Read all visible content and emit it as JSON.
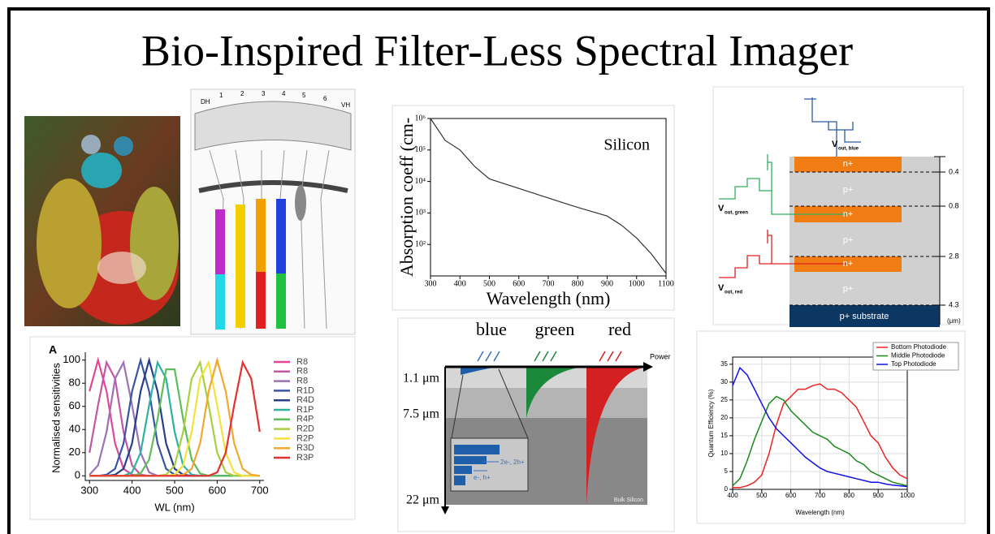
{
  "title": "Bio-Inspired Filter-Less Spectral Imager",
  "eye_drawing": {
    "labels": [
      "DH",
      "1",
      "2",
      "3",
      "4",
      "5",
      "6",
      "VH"
    ]
  },
  "chart_data": [
    {
      "type": "line",
      "log_y": true,
      "annotation": "Silicon",
      "xlabel": "Wavelength (nm)",
      "ylabel": "Absorption coeff (cm-",
      "x": [
        300,
        350,
        400,
        450,
        500,
        600,
        700,
        800,
        900,
        950,
        1000,
        1050,
        1100
      ],
      "values": [
        1000000,
        200000,
        100000,
        30000,
        12000,
        6000,
        3000,
        1500,
        800,
        400,
        160,
        50,
        12
      ],
      "color": "#333333",
      "xlim": [
        300,
        1100
      ],
      "ylim": [
        10,
        1000000
      ],
      "xticks": [
        300,
        400,
        500,
        600,
        700,
        800,
        900,
        1000,
        1100
      ],
      "yticks": [
        {
          "value": 100,
          "label": "10²"
        },
        {
          "value": 1000,
          "label": "10³"
        },
        {
          "value": 10000,
          "label": "10⁴"
        },
        {
          "value": 100000,
          "label": "10⁵"
        },
        {
          "value": 1000000,
          "label": "10⁶"
        }
      ]
    },
    {
      "type": "line",
      "panel_label": "A",
      "xlabel": "WL (nm)",
      "ylabel": "Normalised sensitivities",
      "x": [
        300,
        320,
        340,
        360,
        380,
        400,
        420,
        440,
        460,
        480,
        500,
        520,
        540,
        560,
        580,
        600,
        620,
        640,
        660,
        680,
        700
      ],
      "series": [
        {
          "name": "R8",
          "color": "#e64597",
          "values": [
            73,
            100,
            73,
            28,
            6,
            1,
            0,
            0,
            0,
            0,
            0,
            0,
            0,
            0,
            0,
            0,
            0,
            0,
            0,
            0,
            0
          ]
        },
        {
          "name": "R8",
          "color": "#c457a5",
          "values": [
            20,
            61,
            98,
            84,
            38,
            9,
            1,
            0,
            0,
            0,
            0,
            0,
            0,
            0,
            0,
            0,
            0,
            0,
            0,
            0,
            0
          ]
        },
        {
          "name": "R8",
          "color": "#9a72b5",
          "values": [
            1,
            9,
            38,
            84,
            98,
            61,
            20,
            3,
            0,
            0,
            0,
            0,
            0,
            0,
            0,
            0,
            0,
            0,
            0,
            0,
            0
          ]
        },
        {
          "name": "R1D",
          "color": "#3b55a5",
          "values": [
            0,
            0,
            1,
            6,
            28,
            73,
            100,
            73,
            28,
            6,
            1,
            0,
            0,
            0,
            0,
            0,
            0,
            0,
            0,
            0,
            0
          ]
        },
        {
          "name": "R4D",
          "color": "#283e8c",
          "values": [
            0,
            0,
            0,
            1,
            6,
            28,
            73,
            100,
            73,
            28,
            6,
            1,
            0,
            0,
            0,
            0,
            0,
            0,
            0,
            0,
            0
          ]
        },
        {
          "name": "R1P",
          "color": "#2cb3a0",
          "values": [
            0,
            0,
            0,
            0,
            0,
            3,
            20,
            61,
            98,
            84,
            38,
            9,
            1,
            0,
            0,
            0,
            0,
            0,
            0,
            0,
            0
          ]
        },
        {
          "name": "R4P",
          "color": "#5ebd5b",
          "values": [
            0,
            0,
            0,
            0,
            0,
            0,
            2,
            14,
            49,
            92,
            92,
            49,
            14,
            2,
            0,
            0,
            0,
            0,
            0,
            0,
            0
          ]
        },
        {
          "name": "R2D",
          "color": "#a9cf3f",
          "values": [
            0,
            0,
            0,
            0,
            0,
            0,
            0,
            0,
            0,
            1,
            9,
            38,
            84,
            98,
            61,
            20,
            3,
            0,
            0,
            0,
            0
          ]
        },
        {
          "name": "R2P",
          "color": "#f3e23b",
          "values": [
            0,
            0,
            0,
            0,
            0,
            0,
            0,
            0,
            0,
            0,
            1,
            9,
            38,
            84,
            98,
            61,
            20,
            3,
            0,
            0,
            0
          ]
        },
        {
          "name": "R3D",
          "color": "#f2a72e",
          "values": [
            0,
            0,
            0,
            0,
            0,
            0,
            0,
            0,
            0,
            0,
            0,
            1,
            6,
            28,
            73,
            100,
            73,
            28,
            6,
            1,
            0
          ]
        },
        {
          "name": "R3P",
          "color": "#e3312f",
          "values": [
            0,
            0,
            0,
            0,
            0,
            0,
            0,
            0,
            0,
            0,
            0,
            0,
            0,
            0,
            0,
            3,
            20,
            61,
            98,
            84,
            38
          ]
        }
      ],
      "xlim": [
        290,
        710
      ],
      "ylim": [
        -4,
        104
      ],
      "xticks": [
        300,
        400,
        500,
        600,
        700
      ],
      "yticks": [
        0,
        20,
        40,
        60,
        80,
        100
      ],
      "legend": "right"
    },
    {
      "type": "line",
      "xlabel": "Wavelength (nm)",
      "ylabel": "Quantum Efficiency (%)",
      "x": [
        400,
        425,
        450,
        475,
        500,
        525,
        550,
        575,
        600,
        625,
        650,
        675,
        700,
        725,
        750,
        775,
        800,
        825,
        850,
        875,
        900,
        925,
        950,
        975,
        1000
      ],
      "series": [
        {
          "name": "Bottom Photodiode",
          "color": "#ee2222",
          "values": [
            0.5,
            0.5,
            1,
            2,
            4,
            10,
            18,
            24,
            26,
            28,
            28,
            29,
            29.5,
            28,
            28,
            27,
            25,
            23,
            19,
            15,
            13,
            9,
            6,
            4,
            3
          ]
        },
        {
          "name": "Middle Photodiode",
          "color": "#1a8a1a",
          "values": [
            1,
            3,
            8,
            14,
            19,
            24,
            26,
            25,
            22,
            20,
            18,
            16,
            15,
            14,
            12,
            11,
            10,
            8,
            7,
            5,
            4,
            3,
            2,
            1.5,
            1
          ]
        },
        {
          "name": "Top Photodiode",
          "color": "#1111ee",
          "values": [
            29,
            34,
            32,
            28,
            24,
            20,
            17,
            15,
            13,
            11,
            9,
            7.5,
            6,
            5,
            4.5,
            4,
            3.5,
            3,
            2.5,
            2,
            2,
            1.5,
            1.2,
            1,
            0.8
          ]
        }
      ],
      "xlim": [
        400,
        1000
      ],
      "ylim": [
        0,
        37
      ],
      "xticks": [
        400,
        500,
        600,
        700,
        800,
        900,
        1000
      ],
      "yticks": [
        0,
        5,
        10,
        15,
        20,
        25,
        30,
        35
      ],
      "grid": true,
      "legend": "upper-right"
    }
  ],
  "cmos_diagram": {
    "layers": [
      "n+",
      "p+",
      "n+",
      "p+",
      "n+",
      "p+",
      "p+ substrate"
    ],
    "depths": [
      "0.4",
      "0.8",
      "2.8",
      "4.3"
    ],
    "unit": "(μm)",
    "outputs": [
      {
        "symbol": "V",
        "subscript": "out, blue"
      },
      {
        "symbol": "V",
        "subscript": "out, green"
      },
      {
        "symbol": "V",
        "subscript": "out, red"
      }
    ]
  },
  "absorption_diagram": {
    "colors": [
      "blue",
      "green",
      "red"
    ],
    "axis_label": "Power",
    "depths": [
      "1.1 μm",
      "7.5 μm",
      "22 μm"
    ],
    "region": "Bulk Silicon",
    "carriers": [
      "2e-, 2h+",
      "e-, h+"
    ]
  }
}
